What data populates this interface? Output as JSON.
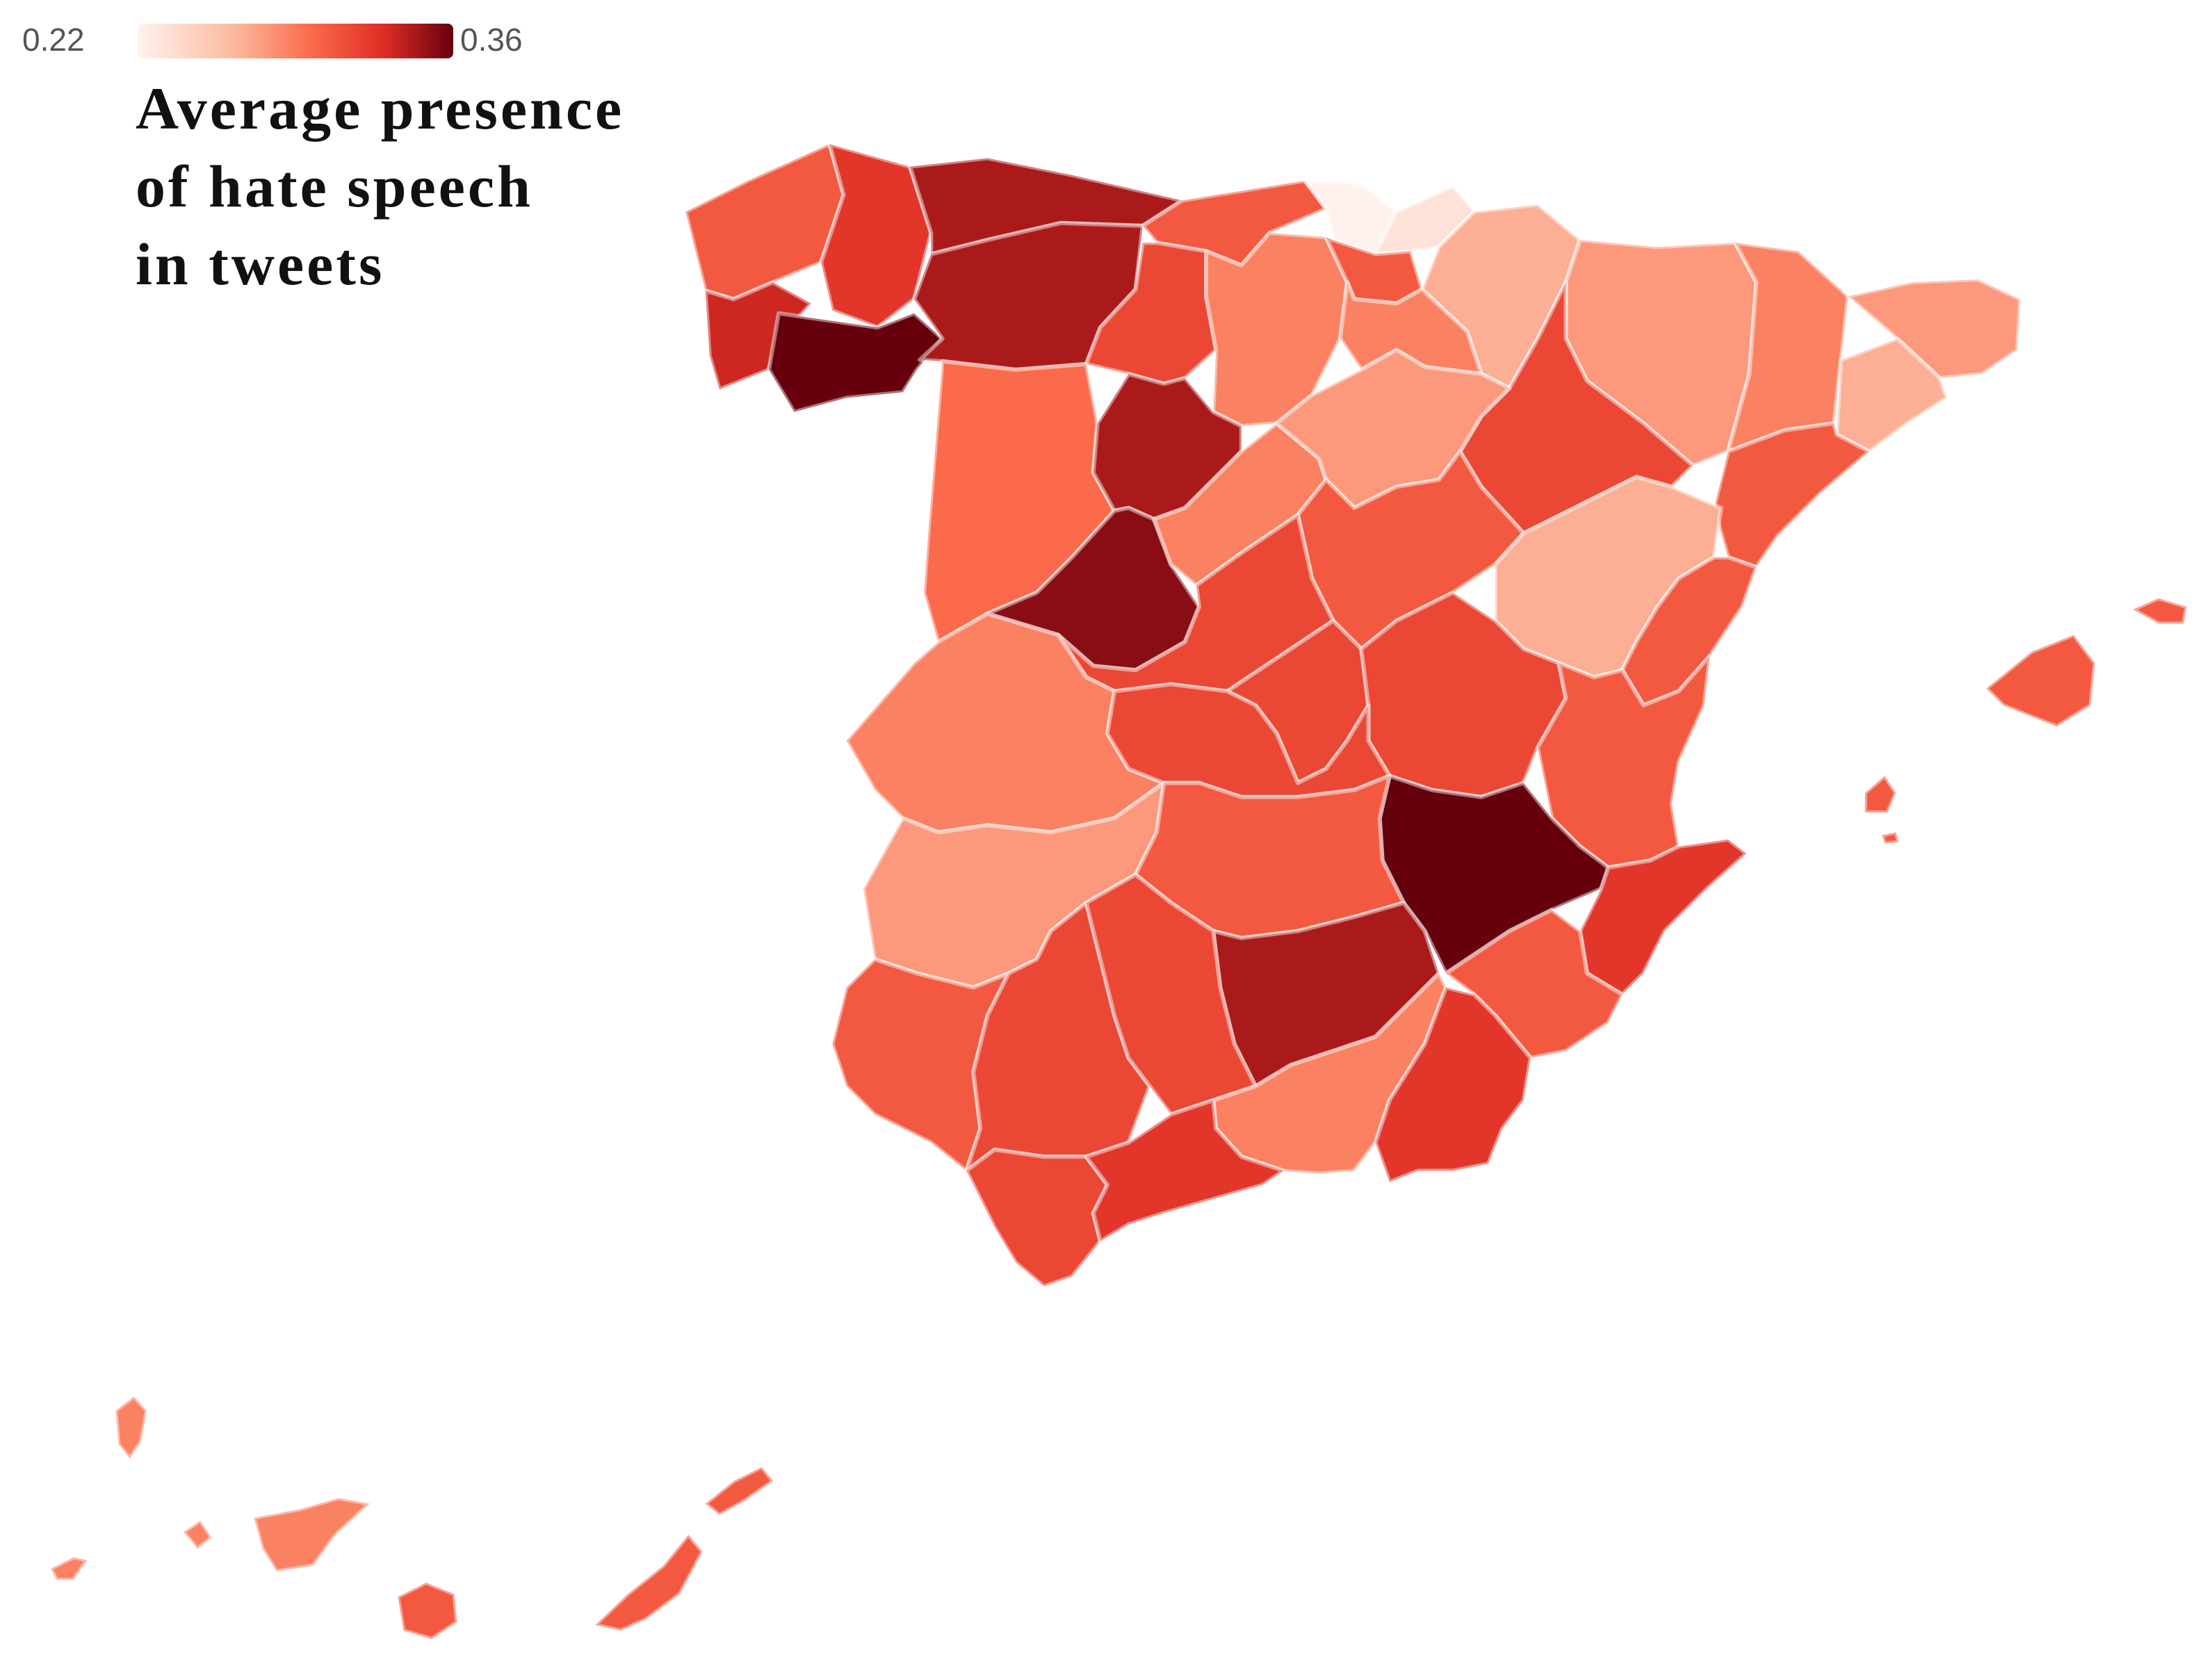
{
  "legend": {
    "min_label": "0.22",
    "max_label": "0.36",
    "min_value": 0.22,
    "max_value": 0.36,
    "colors": [
      "#fff2ee",
      "#fcbba1",
      "#fb6a4a",
      "#de2d26",
      "#67000d"
    ]
  },
  "title_lines": [
    "Average presence",
    "of hate speech",
    "in tweets"
  ],
  "regions": [
    {
      "name": "a-coruna",
      "value": 0.3
    },
    {
      "name": "lugo",
      "value": 0.32
    },
    {
      "name": "asturias",
      "value": 0.34
    },
    {
      "name": "pontevedra",
      "value": 0.33
    },
    {
      "name": "ourense",
      "value": 0.36
    },
    {
      "name": "leon",
      "value": 0.34
    },
    {
      "name": "cantabria",
      "value": 0.3
    },
    {
      "name": "palencia",
      "value": 0.31
    },
    {
      "name": "burgos",
      "value": 0.28
    },
    {
      "name": "bizkaia",
      "value": 0.22
    },
    {
      "name": "gipuzkoa",
      "value": 0.23
    },
    {
      "name": "alava",
      "value": 0.3
    },
    {
      "name": "navarra",
      "value": 0.26
    },
    {
      "name": "la-rioja",
      "value": 0.28
    },
    {
      "name": "huesca",
      "value": 0.27
    },
    {
      "name": "zaragoza",
      "value": 0.31
    },
    {
      "name": "lleida",
      "value": 0.28
    },
    {
      "name": "girona",
      "value": 0.27
    },
    {
      "name": "barcelona",
      "value": 0.26
    },
    {
      "name": "tarragona",
      "value": 0.3
    },
    {
      "name": "zamora",
      "value": 0.29
    },
    {
      "name": "valladolid",
      "value": 0.34
    },
    {
      "name": "salamanca",
      "value": 0.35
    },
    {
      "name": "segovia",
      "value": 0.28
    },
    {
      "name": "soria",
      "value": 0.27
    },
    {
      "name": "guadalajara",
      "value": 0.3
    },
    {
      "name": "teruel",
      "value": 0.26
    },
    {
      "name": "castellon",
      "value": 0.3
    },
    {
      "name": "avila",
      "value": 0.31
    },
    {
      "name": "madrid",
      "value": 0.31
    },
    {
      "name": "cuenca",
      "value": 0.31
    },
    {
      "name": "valencia",
      "value": 0.3
    },
    {
      "name": "caceres",
      "value": 0.28
    },
    {
      "name": "toledo",
      "value": 0.31
    },
    {
      "name": "albacete",
      "value": 0.36
    },
    {
      "name": "alicante",
      "value": 0.32
    },
    {
      "name": "badajoz",
      "value": 0.27
    },
    {
      "name": "ciudad-real",
      "value": 0.3
    },
    {
      "name": "jaen",
      "value": 0.34
    },
    {
      "name": "murcia",
      "value": 0.3
    },
    {
      "name": "huelva",
      "value": 0.3
    },
    {
      "name": "sevilla",
      "value": 0.31
    },
    {
      "name": "cordoba",
      "value": 0.31
    },
    {
      "name": "granada",
      "value": 0.28
    },
    {
      "name": "almeria",
      "value": 0.32
    },
    {
      "name": "cadiz",
      "value": 0.31
    },
    {
      "name": "malaga",
      "value": 0.32
    },
    {
      "name": "mallorca",
      "value": 0.3
    },
    {
      "name": "menorca",
      "value": 0.3
    },
    {
      "name": "ibiza",
      "value": 0.3
    },
    {
      "name": "formentera",
      "value": 0.3
    },
    {
      "name": "la-palma",
      "value": 0.28
    },
    {
      "name": "el-hierro",
      "value": 0.28
    },
    {
      "name": "la-gomera",
      "value": 0.28
    },
    {
      "name": "tenerife",
      "value": 0.28
    },
    {
      "name": "gran-canaria",
      "value": 0.3
    },
    {
      "name": "fuerteventura",
      "value": 0.3
    },
    {
      "name": "lanzarote",
      "value": 0.3
    }
  ]
}
